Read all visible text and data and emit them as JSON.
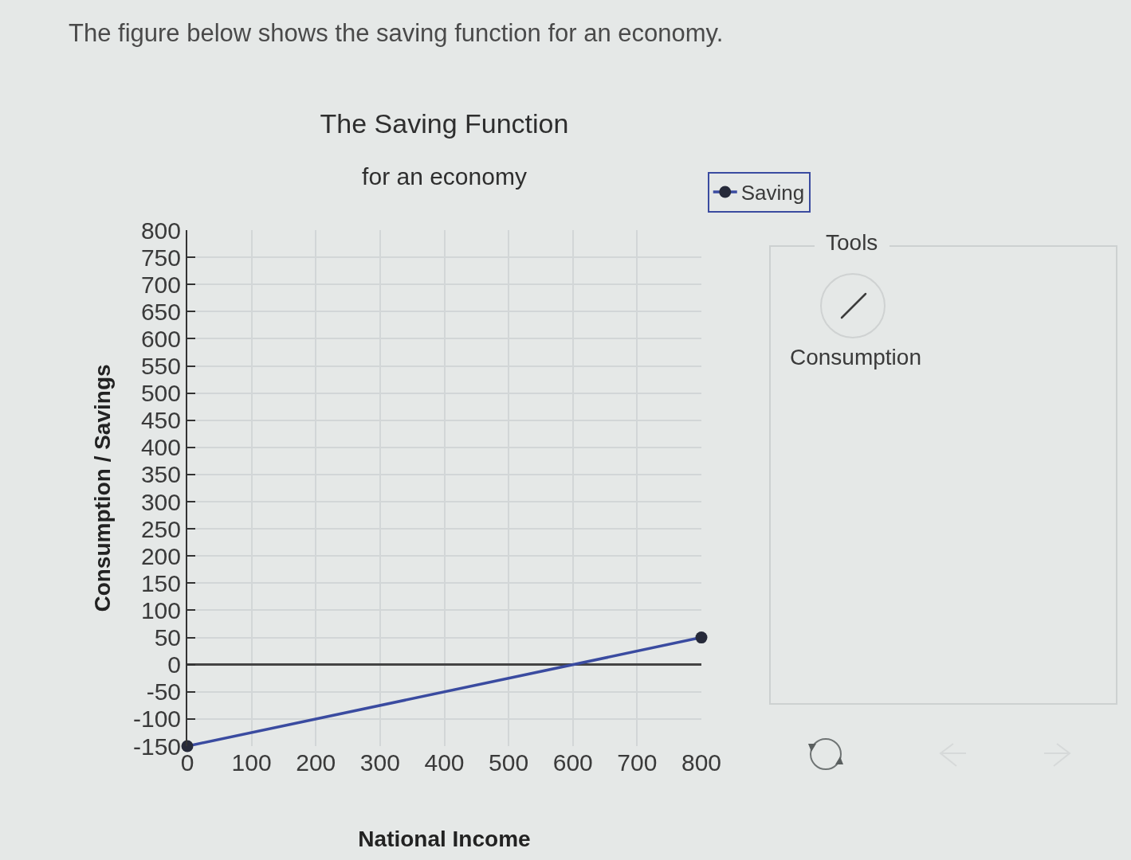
{
  "chart_data": {
    "type": "line",
    "title": "The Saving Function",
    "subtitle": "for an economy",
    "xlabel": "National Income",
    "ylabel": "Consumption / Savings",
    "annotations": [
      "The figure below shows the saving function for an economy.",
      "Tools",
      "Consumption"
    ],
    "x": [
      0,
      800
    ],
    "series": [
      {
        "name": "Saving",
        "color": "#3a4ba0",
        "values": [
          -150,
          50
        ]
      }
    ],
    "xlim": [
      0,
      800
    ],
    "ylim": [
      -150,
      800
    ],
    "xticks": [
      0,
      100,
      200,
      300,
      400,
      500,
      600,
      700,
      800
    ],
    "yticks": [
      -150,
      -100,
      -50,
      0,
      50,
      100,
      150,
      200,
      250,
      300,
      350,
      400,
      450,
      500,
      550,
      600,
      650,
      700,
      750,
      800
    ],
    "grid": true,
    "legend": "top right",
    "marker": "circle",
    "line_style": "solid"
  }
}
